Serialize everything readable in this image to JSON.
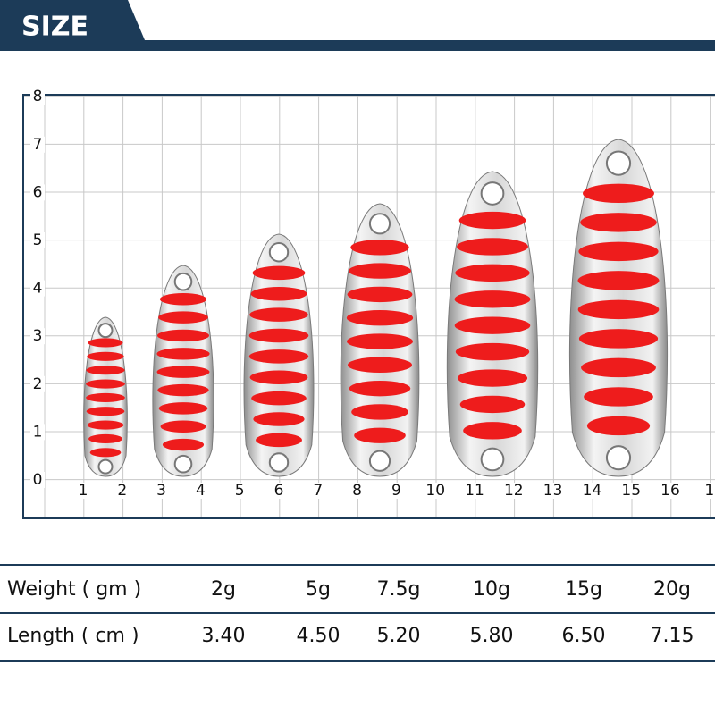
{
  "header": {
    "title": "SIZE"
  },
  "grid": {
    "y_labels": [
      "0",
      "1",
      "2",
      "3",
      "4",
      "5",
      "6",
      "7",
      "8"
    ],
    "x_labels": [
      "1",
      "2",
      "3",
      "4",
      "5",
      "6",
      "7",
      "8",
      "9",
      "10",
      "11",
      "12",
      "13",
      "14",
      "15",
      "16",
      "1"
    ]
  },
  "table": {
    "rows": [
      [
        "Weight ( gm )",
        "2g",
        "5g",
        "7.5g",
        "10g",
        "15g",
        "20g"
      ],
      [
        "Length ( cm )",
        "3.40",
        "4.50",
        "5.20",
        "5.80",
        "6.50",
        "7.15"
      ]
    ]
  }
}
